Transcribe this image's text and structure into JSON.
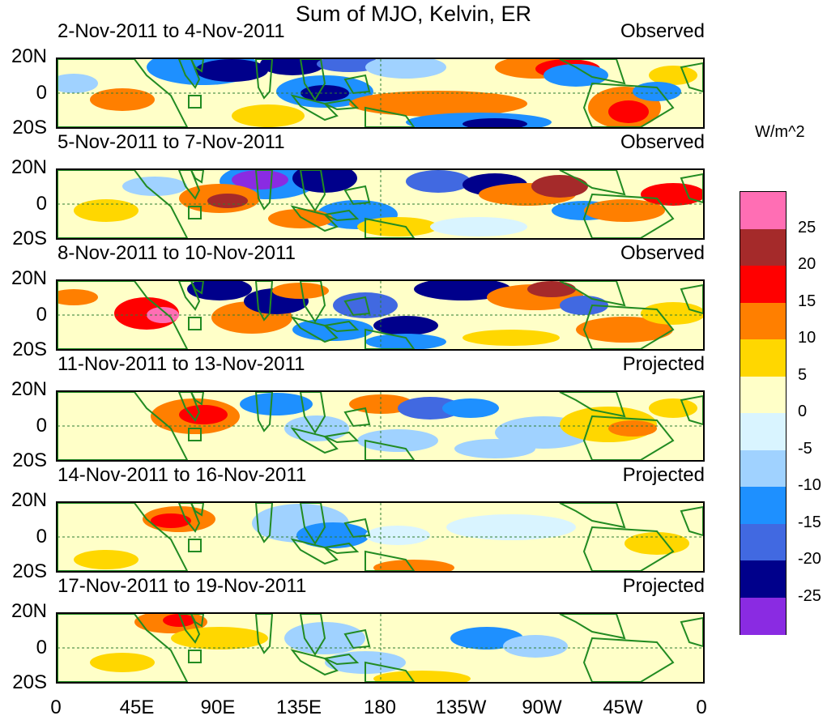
{
  "figure": {
    "title": "Sum of MJO, Kelvin, ER",
    "units": "W/m^2"
  },
  "panels": [
    {
      "label": "2-Nov-2011 to 4-Nov-2011",
      "status": "Observed"
    },
    {
      "label": "5-Nov-2011 to 7-Nov-2011",
      "status": "Observed"
    },
    {
      "label": "8-Nov-2011 to 10-Nov-2011",
      "status": "Observed"
    },
    {
      "label": "11-Nov-2011 to 13-Nov-2011",
      "status": "Projected"
    },
    {
      "label": "14-Nov-2011 to 16-Nov-2011",
      "status": "Projected"
    },
    {
      "label": "17-Nov-2011 to 19-Nov-2011",
      "status": "Projected"
    }
  ],
  "lat_ticks": [
    "20N",
    "0",
    "20S"
  ],
  "lon_ticks": [
    "0",
    "45E",
    "90E",
    "135E",
    "180",
    "135W",
    "90W",
    "45W",
    "0"
  ],
  "colorbar": {
    "labels": [
      "25",
      "20",
      "15",
      "10",
      "5",
      "0",
      "-5",
      "-10",
      "-15",
      "-20",
      "-25"
    ],
    "colors": [
      "#ff6eb4",
      "#a52a2a",
      "#ff0000",
      "#ff7f00",
      "#ffd700",
      "#ffffc8",
      "#d9f4ff",
      "#a0d2ff",
      "#1e90ff",
      "#4169e1",
      "#00008b",
      "#8a2be2"
    ]
  },
  "colors": {
    "coast": "#228b22",
    "neutral": "#ffffc8"
  }
}
